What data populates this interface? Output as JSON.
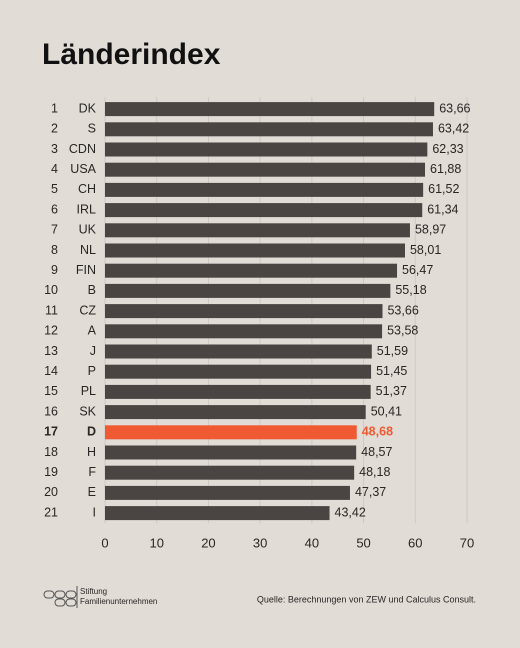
{
  "chart_data": {
    "type": "hbar",
    "title": "Länderindex",
    "ranks": [
      1,
      2,
      3,
      4,
      5,
      6,
      7,
      8,
      9,
      10,
      11,
      12,
      13,
      14,
      15,
      16,
      17,
      18,
      19,
      20,
      21
    ],
    "categories": [
      "DK",
      "S",
      "CDN",
      "USA",
      "CH",
      "IRL",
      "UK",
      "NL",
      "FIN",
      "B",
      "CZ",
      "A",
      "J",
      "P",
      "PL",
      "SK",
      "D",
      "H",
      "F",
      "E",
      "I"
    ],
    "values": [
      63.66,
      63.42,
      62.33,
      61.88,
      61.52,
      61.34,
      58.97,
      58.01,
      56.47,
      55.18,
      53.66,
      53.58,
      51.59,
      51.45,
      51.37,
      50.41,
      48.68,
      48.57,
      48.18,
      47.37,
      43.42
    ],
    "value_labels": [
      "63,66",
      "63,42",
      "62,33",
      "61,88",
      "61,52",
      "61,34",
      "58,97",
      "58,01",
      "56,47",
      "55,18",
      "53,66",
      "53,58",
      "51,59",
      "51,45",
      "51,37",
      "50,41",
      "48,68",
      "48,57",
      "48,18",
      "47,37",
      "43,42"
    ],
    "color": "#4a4542",
    "highlight": "D",
    "highlight_color": "#f05a32",
    "xlim": [
      0,
      70
    ],
    "xticks": [
      0,
      10,
      20,
      30,
      40,
      50,
      60,
      70
    ],
    "grid": true
  },
  "footer": {
    "logo": [
      "Stiftung",
      "Familienunternehmen"
    ],
    "source": "Quelle: Berechnungen von ZEW und Calculus Consult."
  }
}
